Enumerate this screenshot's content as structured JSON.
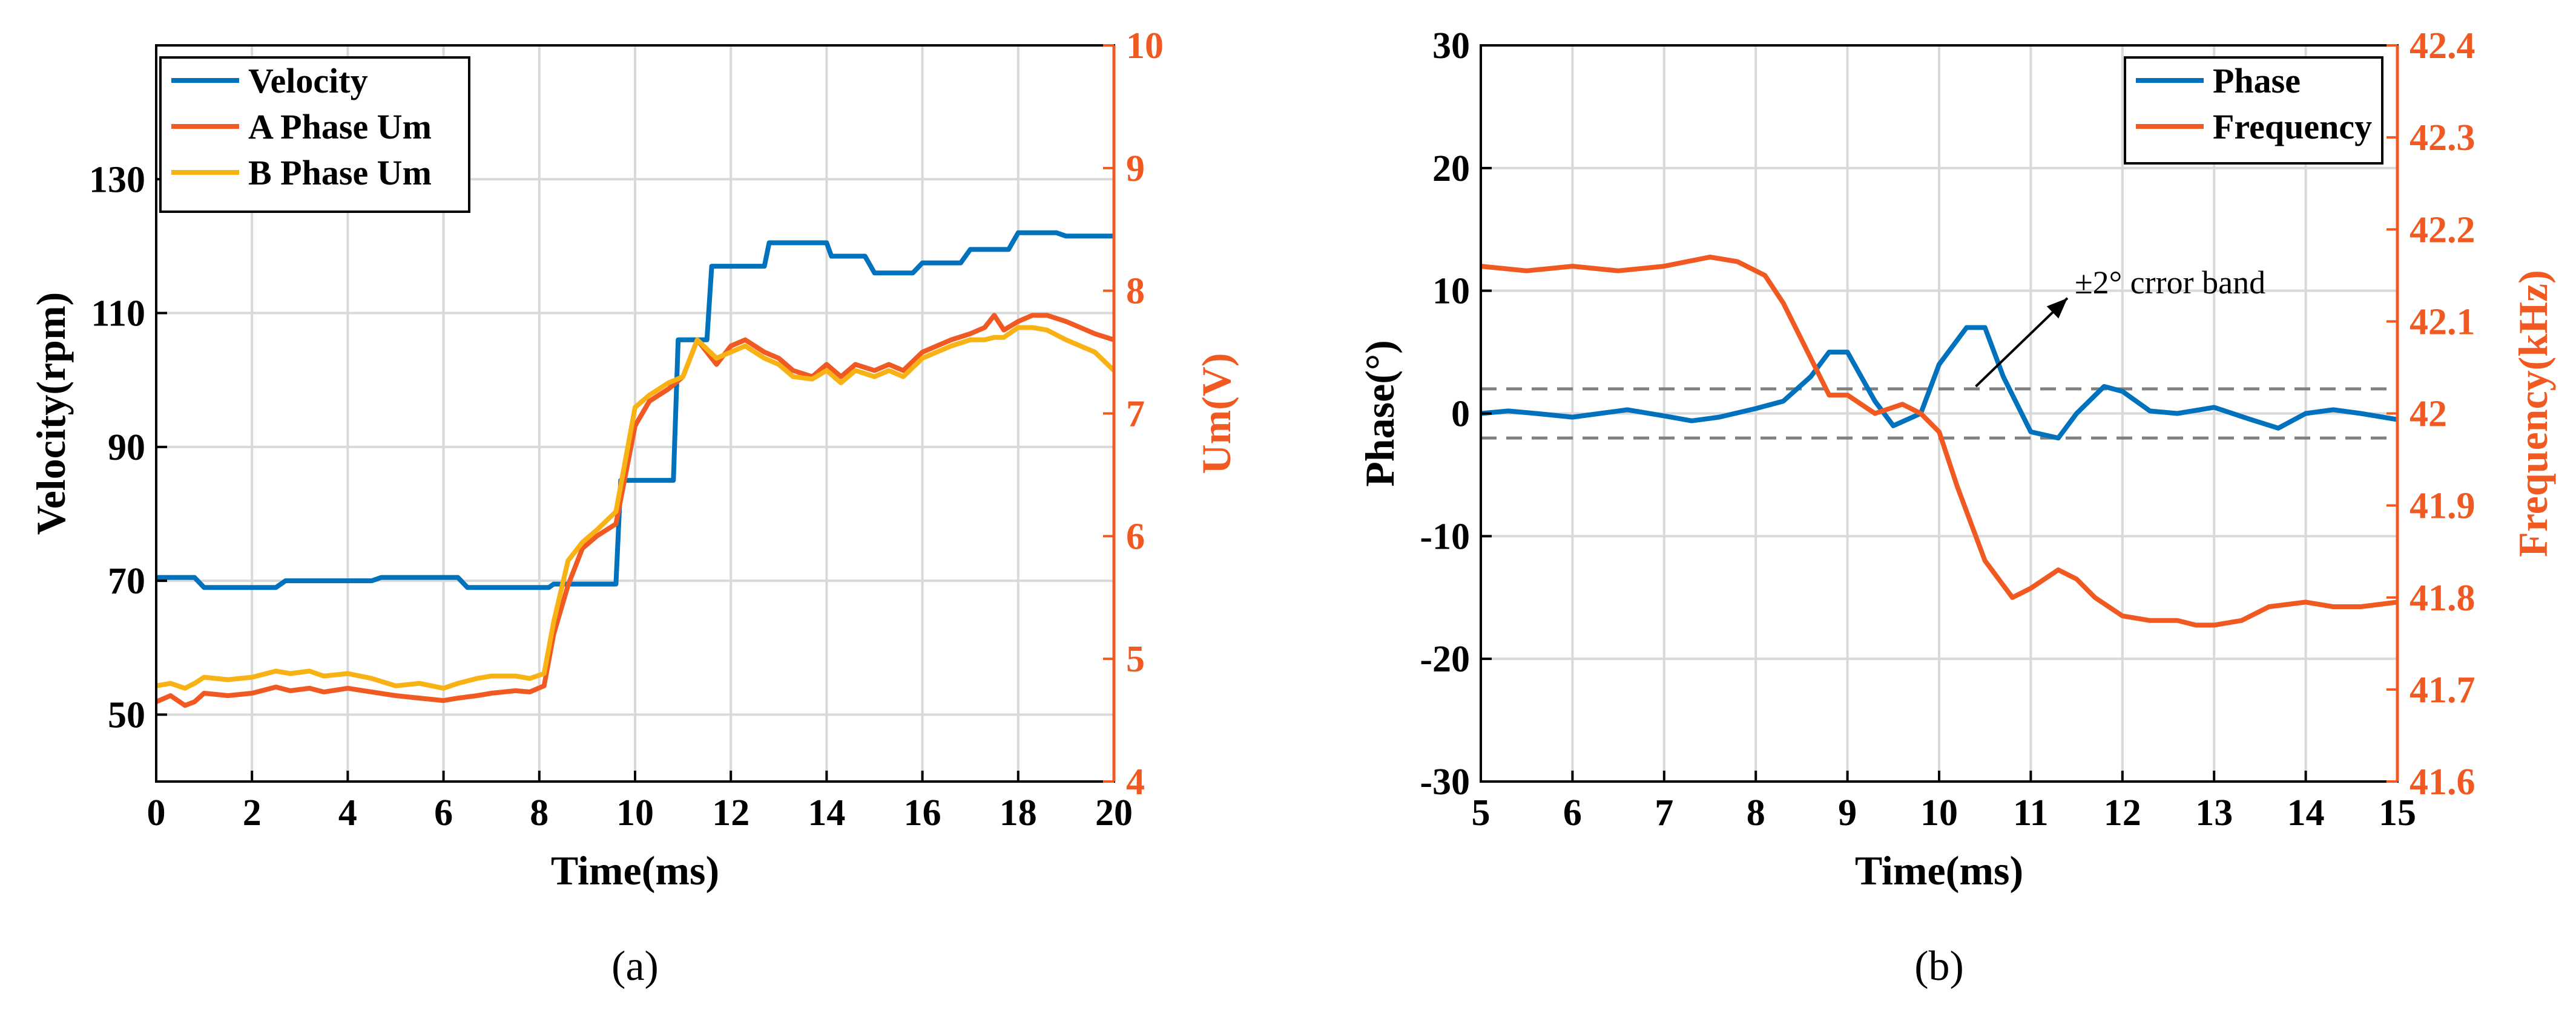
{
  "figure": {
    "panel_a_caption": "(a)",
    "panel_b_caption": "(b)"
  },
  "colors": {
    "blue": "#0072BD",
    "orange": "#F05A22",
    "yellow": "#F9B214",
    "right_axis": "#F05A22",
    "grid": "#d9d9d9",
    "band": "#808080"
  },
  "chart_data": [
    {
      "type": "line",
      "panel": "(a)",
      "xlabel": "Time(ms)",
      "ylabel_left": "Velocity(rpm)",
      "ylabel_right": "Um(V)",
      "xlim": [
        0,
        20
      ],
      "ylim_left": [
        40,
        150
      ],
      "ylim_right": [
        4,
        10
      ],
      "xticks": [
        0,
        2,
        4,
        6,
        8,
        10,
        12,
        14,
        16,
        18,
        20
      ],
      "yticks_left": [
        50,
        70,
        90,
        110,
        130
      ],
      "yticks_right": [
        4,
        5,
        6,
        7,
        8,
        9,
        10
      ],
      "grid": true,
      "legend_position": "top-left",
      "series": [
        {
          "name": "Velocity",
          "axis": "left",
          "color": "#0072BD",
          "x": [
            0,
            0.8,
            1.0,
            2.5,
            2.7,
            4.5,
            4.7,
            6.3,
            6.5,
            8.2,
            8.3,
            9.6,
            9.7,
            10.8,
            10.9,
            11.5,
            11.6,
            12.7,
            12.8,
            14.0,
            14.1,
            14.8,
            15.0,
            15.8,
            16.0,
            16.8,
            17.0,
            17.8,
            18.0,
            18.8,
            19.0,
            20.0
          ],
          "values": [
            70.5,
            70.5,
            69,
            69,
            70,
            70,
            70.5,
            70.5,
            69,
            69,
            69.5,
            69.5,
            85,
            85,
            106,
            106,
            117,
            117,
            120.5,
            120.5,
            118.5,
            118.5,
            116,
            116,
            117.5,
            117.5,
            119.5,
            119.5,
            122,
            122,
            121.5,
            121.5
          ]
        },
        {
          "name": "A Phase Um",
          "axis": "right",
          "color": "#F05A22",
          "x": [
            0,
            0.3,
            0.6,
            0.8,
            1.0,
            1.5,
            2.0,
            2.5,
            2.8,
            3.2,
            3.5,
            4.0,
            4.5,
            5.0,
            5.5,
            6.0,
            6.3,
            6.7,
            7.0,
            7.5,
            7.8,
            8.1,
            8.3,
            8.6,
            8.9,
            9.2,
            9.6,
            10.0,
            10.3,
            10.7,
            11.0,
            11.3,
            11.7,
            12.0,
            12.3,
            12.7,
            13.0,
            13.3,
            13.7,
            14.0,
            14.3,
            14.6,
            15.0,
            15.3,
            15.6,
            16.0,
            16.3,
            16.6,
            17.0,
            17.3,
            17.5,
            17.7,
            18.0,
            18.3,
            18.6,
            19.0,
            19.3,
            19.6,
            20.0
          ],
          "values": [
            4.65,
            4.7,
            4.62,
            4.65,
            4.72,
            4.7,
            4.72,
            4.77,
            4.74,
            4.76,
            4.73,
            4.76,
            4.73,
            4.7,
            4.68,
            4.66,
            4.68,
            4.7,
            4.72,
            4.74,
            4.73,
            4.78,
            5.2,
            5.6,
            5.9,
            6.0,
            6.1,
            6.9,
            7.1,
            7.2,
            7.3,
            7.6,
            7.4,
            7.55,
            7.6,
            7.5,
            7.45,
            7.35,
            7.3,
            7.4,
            7.3,
            7.4,
            7.35,
            7.4,
            7.35,
            7.5,
            7.55,
            7.6,
            7.65,
            7.7,
            7.8,
            7.68,
            7.75,
            7.8,
            7.8,
            7.75,
            7.7,
            7.65,
            7.6
          ]
        },
        {
          "name": "B Phase Um",
          "axis": "right",
          "color": "#F9B214",
          "x": [
            0,
            0.3,
            0.6,
            0.8,
            1.0,
            1.5,
            2.0,
            2.5,
            2.8,
            3.2,
            3.5,
            4.0,
            4.5,
            5.0,
            5.5,
            6.0,
            6.3,
            6.7,
            7.0,
            7.5,
            7.8,
            8.1,
            8.3,
            8.6,
            8.9,
            9.2,
            9.6,
            10.0,
            10.3,
            10.7,
            11.0,
            11.3,
            11.7,
            12.0,
            12.3,
            12.7,
            13.0,
            13.3,
            13.7,
            14.0,
            14.3,
            14.6,
            15.0,
            15.3,
            15.6,
            16.0,
            16.3,
            16.6,
            17.0,
            17.3,
            17.5,
            17.7,
            18.0,
            18.3,
            18.6,
            19.0,
            19.3,
            19.6,
            20.0
          ],
          "values": [
            4.78,
            4.8,
            4.76,
            4.8,
            4.85,
            4.83,
            4.85,
            4.9,
            4.88,
            4.9,
            4.86,
            4.88,
            4.84,
            4.78,
            4.8,
            4.76,
            4.8,
            4.84,
            4.86,
            4.86,
            4.84,
            4.88,
            5.3,
            5.8,
            5.95,
            6.05,
            6.2,
            7.05,
            7.15,
            7.25,
            7.3,
            7.6,
            7.45,
            7.5,
            7.55,
            7.45,
            7.4,
            7.3,
            7.28,
            7.35,
            7.25,
            7.35,
            7.3,
            7.35,
            7.3,
            7.45,
            7.5,
            7.55,
            7.6,
            7.6,
            7.62,
            7.62,
            7.7,
            7.7,
            7.68,
            7.6,
            7.55,
            7.5,
            7.35
          ]
        }
      ]
    },
    {
      "type": "line",
      "panel": "(b)",
      "xlabel": "Time(ms)",
      "ylabel_left": "Phase(°)",
      "ylabel_right": "Frequency(kHz)",
      "xlim": [
        5,
        15
      ],
      "ylim_left": [
        -30,
        30
      ],
      "ylim_right": [
        41.6,
        42.4
      ],
      "xticks": [
        5,
        6,
        7,
        8,
        9,
        10,
        11,
        12,
        13,
        14,
        15
      ],
      "yticks_left": [
        -30,
        -20,
        -10,
        0,
        10,
        20,
        30
      ],
      "yticks_right": [
        41.6,
        41.7,
        41.8,
        41.9,
        42,
        42.1,
        42.2,
        42.3,
        42.4
      ],
      "grid": true,
      "legend_position": "top-right",
      "annotation": "±2° crror band",
      "error_band": [
        -2,
        2
      ],
      "series": [
        {
          "name": "Phase",
          "axis": "left",
          "color": "#0072BD",
          "x": [
            5,
            5.3,
            5.6,
            6.0,
            6.3,
            6.6,
            7.0,
            7.3,
            7.6,
            8.0,
            8.3,
            8.6,
            8.8,
            9.0,
            9.3,
            9.5,
            9.8,
            10.0,
            10.3,
            10.5,
            10.7,
            10.9,
            11.0,
            11.3,
            11.5,
            11.8,
            12.0,
            12.3,
            12.6,
            13.0,
            13.4,
            13.7,
            14.0,
            14.3,
            14.6,
            15.0
          ],
          "values": [
            0,
            0.2,
            0,
            -0.3,
            0,
            0.3,
            -0.2,
            -0.6,
            -0.3,
            0.4,
            1.0,
            3.0,
            5.0,
            5.0,
            1.0,
            -1.0,
            0,
            4.0,
            7.0,
            7.0,
            3.0,
            0,
            -1.5,
            -2.0,
            0,
            2.2,
            1.8,
            0.2,
            0,
            0.5,
            -0.5,
            -1.2,
            0,
            0.3,
            0,
            -0.5
          ]
        },
        {
          "name": "Frequency",
          "axis": "right",
          "color": "#F05A22",
          "x": [
            5,
            5.5,
            6.0,
            6.5,
            7.0,
            7.5,
            7.8,
            8.1,
            8.3,
            8.5,
            8.8,
            9.0,
            9.3,
            9.6,
            9.8,
            10.0,
            10.2,
            10.5,
            10.8,
            11.0,
            11.3,
            11.5,
            11.7,
            12.0,
            12.3,
            12.6,
            12.8,
            13.0,
            13.3,
            13.6,
            14.0,
            14.3,
            14.6,
            15.0
          ],
          "values": [
            42.16,
            42.155,
            42.16,
            42.155,
            42.16,
            42.17,
            42.165,
            42.15,
            42.12,
            42.08,
            42.02,
            42.02,
            42.0,
            42.01,
            42.0,
            41.98,
            41.92,
            41.84,
            41.8,
            41.81,
            41.83,
            41.82,
            41.8,
            41.78,
            41.775,
            41.775,
            41.77,
            41.77,
            41.775,
            41.79,
            41.795,
            41.79,
            41.79,
            41.795
          ]
        }
      ]
    }
  ]
}
